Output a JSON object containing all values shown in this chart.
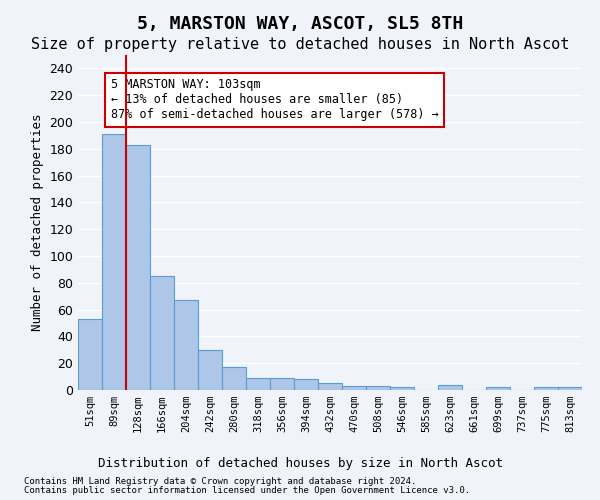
{
  "title": "5, MARSTON WAY, ASCOT, SL5 8TH",
  "subtitle": "Size of property relative to detached houses in North Ascot",
  "xlabel": "Distribution of detached houses by size in North Ascot",
  "ylabel": "Number of detached properties",
  "xlabels": [
    "51sqm",
    "89sqm",
    "128sqm",
    "166sqm",
    "204sqm",
    "242sqm",
    "280sqm",
    "318sqm",
    "356sqm",
    "394sqm",
    "432sqm",
    "470sqm",
    "508sqm",
    "546sqm",
    "585sqm",
    "623sqm",
    "661sqm",
    "699sqm",
    "737sqm",
    "775sqm",
    "813sqm"
  ],
  "bar_data": [
    53,
    191,
    183,
    85,
    67,
    30,
    17,
    9,
    9,
    8,
    5,
    3,
    3,
    2,
    0,
    4,
    0,
    2,
    0,
    2,
    2
  ],
  "ylim": [
    0,
    250
  ],
  "yticks": [
    0,
    20,
    40,
    60,
    80,
    100,
    120,
    140,
    160,
    180,
    200,
    220,
    240
  ],
  "bar_color": "#aec6e8",
  "bar_edge_color": "#5b9bd5",
  "vline_x": 1.5,
  "vline_color": "#cc0000",
  "annotation_text": "5 MARSTON WAY: 103sqm\n← 13% of detached houses are smaller (85)\n87% of semi-detached houses are larger (578) →",
  "annotation_box_color": "#ffffff",
  "annotation_box_edge_color": "#cc0000",
  "footer1": "Contains HM Land Registry data © Crown copyright and database right 2024.",
  "footer2": "Contains public sector information licensed under the Open Government Licence v3.0.",
  "bg_color": "#f0f4fa",
  "plot_bg_color": "#f0f4fa",
  "title_fontsize": 13,
  "subtitle_fontsize": 11
}
